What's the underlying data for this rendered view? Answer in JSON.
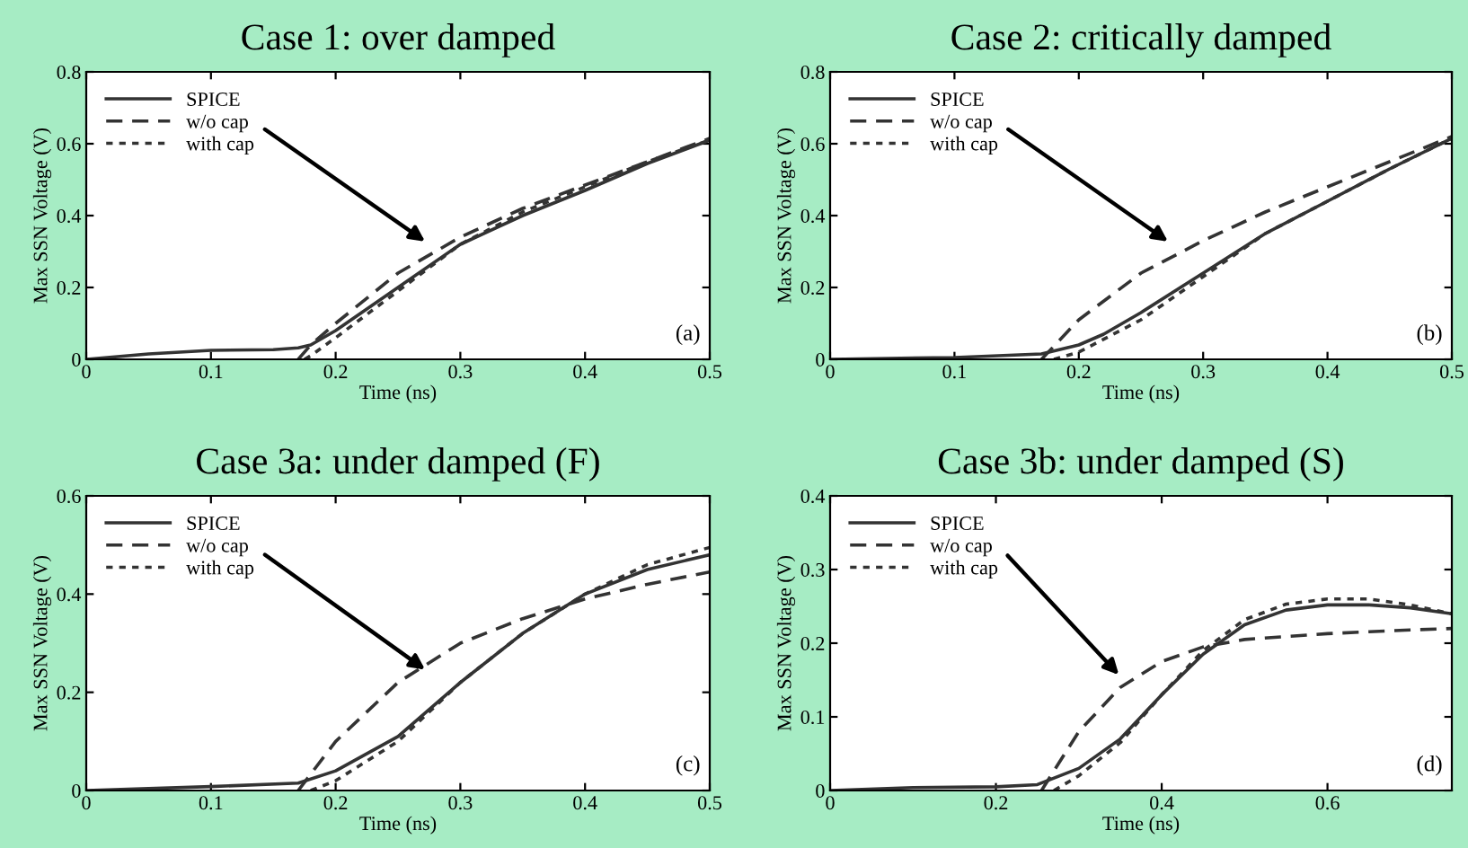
{
  "chart_data": [
    {
      "type": "line",
      "title": "Case 1: over damped",
      "xlabel": "Time (ns)",
      "ylabel": "Max SSN Voltage (V)",
      "annotations": [
        "(a)"
      ],
      "xlim": [
        0,
        0.5
      ],
      "ylim": [
        0,
        0.8
      ],
      "xticks": [
        0,
        0.1,
        0.2,
        0.3,
        0.4,
        0.5
      ],
      "yticks": [
        0,
        0.2,
        0.4,
        0.6,
        0.8
      ],
      "legend": "top left",
      "grid": false,
      "series": [
        {
          "name": "SPICE",
          "color": "#333333",
          "line_style": "solid",
          "x": [
            0,
            0.05,
            0.1,
            0.15,
            0.17,
            0.18,
            0.2,
            0.25,
            0.3,
            0.35,
            0.4,
            0.45,
            0.5
          ],
          "values": [
            0,
            0.015,
            0.025,
            0.027,
            0.032,
            0.04,
            0.08,
            0.2,
            0.32,
            0.4,
            0.47,
            0.545,
            0.61
          ]
        },
        {
          "name": "w/o cap",
          "color": "#333333",
          "line_style": "dashed",
          "x": [
            0.17,
            0.18,
            0.2,
            0.25,
            0.3,
            0.35,
            0.4,
            0.45,
            0.5
          ],
          "values": [
            0,
            0.04,
            0.1,
            0.24,
            0.34,
            0.42,
            0.485,
            0.55,
            0.615
          ]
        },
        {
          "name": "with cap",
          "color": "#333333",
          "line_style": "dotted",
          "x": [
            0.175,
            0.18,
            0.2,
            0.25,
            0.3,
            0.35,
            0.4,
            0.45,
            0.5
          ],
          "values": [
            0,
            0.01,
            0.06,
            0.19,
            0.32,
            0.41,
            0.48,
            0.55,
            0.61
          ]
        }
      ]
    },
    {
      "type": "line",
      "title": "Case 2: critically damped",
      "xlabel": "Time (ns)",
      "ylabel": "Max SSN Voltage (V)",
      "annotations": [
        "(b)"
      ],
      "xlim": [
        0,
        0.5
      ],
      "ylim": [
        0,
        0.8
      ],
      "xticks": [
        0,
        0.1,
        0.2,
        0.3,
        0.4,
        0.5
      ],
      "yticks": [
        0,
        0.2,
        0.4,
        0.6,
        0.8
      ],
      "legend": "top left",
      "grid": false,
      "series": [
        {
          "name": "SPICE",
          "color": "#333333",
          "line_style": "solid",
          "x": [
            0,
            0.1,
            0.17,
            0.2,
            0.22,
            0.25,
            0.3,
            0.35,
            0.4,
            0.45,
            0.5
          ],
          "values": [
            0,
            0.005,
            0.015,
            0.04,
            0.07,
            0.13,
            0.24,
            0.35,
            0.44,
            0.53,
            0.615
          ]
        },
        {
          "name": "w/o cap",
          "color": "#333333",
          "line_style": "dashed",
          "x": [
            0.17,
            0.2,
            0.25,
            0.3,
            0.35,
            0.4,
            0.45,
            0.5
          ],
          "values": [
            0,
            0.11,
            0.24,
            0.33,
            0.41,
            0.48,
            0.55,
            0.62
          ]
        },
        {
          "name": "with cap",
          "color": "#333333",
          "line_style": "dotted",
          "x": [
            0.18,
            0.2,
            0.25,
            0.3,
            0.35,
            0.4,
            0.45,
            0.5
          ],
          "values": [
            0,
            0.02,
            0.11,
            0.23,
            0.35,
            0.44,
            0.53,
            0.615
          ]
        }
      ]
    },
    {
      "type": "line",
      "title": "Case 3a: under damped (F)",
      "xlabel": "Time (ns)",
      "ylabel": "Max SSN Voltage (V)",
      "annotations": [
        "(c)"
      ],
      "xlim": [
        0,
        0.5
      ],
      "ylim": [
        0,
        0.6
      ],
      "xticks": [
        0,
        0.1,
        0.2,
        0.3,
        0.4,
        0.5
      ],
      "yticks": [
        0,
        0.2,
        0.4,
        0.6
      ],
      "legend": "top left",
      "grid": false,
      "series": [
        {
          "name": "SPICE",
          "color": "#333333",
          "line_style": "solid",
          "x": [
            0,
            0.1,
            0.17,
            0.2,
            0.25,
            0.3,
            0.35,
            0.4,
            0.45,
            0.5
          ],
          "values": [
            0,
            0.008,
            0.015,
            0.04,
            0.11,
            0.22,
            0.32,
            0.4,
            0.45,
            0.48
          ]
        },
        {
          "name": "w/o cap",
          "color": "#333333",
          "line_style": "dashed",
          "x": [
            0.17,
            0.2,
            0.25,
            0.3,
            0.35,
            0.4,
            0.45,
            0.5
          ],
          "values": [
            0,
            0.1,
            0.22,
            0.3,
            0.35,
            0.39,
            0.42,
            0.445
          ]
        },
        {
          "name": "with cap",
          "color": "#333333",
          "line_style": "dotted",
          "x": [
            0.18,
            0.2,
            0.25,
            0.3,
            0.35,
            0.4,
            0.45,
            0.5
          ],
          "values": [
            0,
            0.02,
            0.1,
            0.22,
            0.32,
            0.4,
            0.46,
            0.495
          ]
        }
      ]
    },
    {
      "type": "line",
      "title": "Case 3b: under damped (S)",
      "xlabel": "Time (ns)",
      "ylabel": "Max SSN Voltage (V)",
      "annotations": [
        "(d)"
      ],
      "xlim": [
        0,
        0.75
      ],
      "ylim": [
        0,
        0.4
      ],
      "xticks": [
        0,
        0.2,
        0.4,
        0.6
      ],
      "yticks": [
        0,
        0.1,
        0.2,
        0.3,
        0.4
      ],
      "legend": "top left",
      "grid": false,
      "series": [
        {
          "name": "SPICE",
          "color": "#333333",
          "line_style": "solid",
          "x": [
            0,
            0.1,
            0.2,
            0.25,
            0.3,
            0.35,
            0.4,
            0.45,
            0.5,
            0.55,
            0.6,
            0.65,
            0.7,
            0.75
          ],
          "values": [
            0,
            0.004,
            0.005,
            0.008,
            0.03,
            0.07,
            0.13,
            0.185,
            0.225,
            0.245,
            0.252,
            0.252,
            0.248,
            0.24
          ]
        },
        {
          "name": "w/o cap",
          "color": "#333333",
          "line_style": "dashed",
          "x": [
            0.255,
            0.3,
            0.35,
            0.4,
            0.45,
            0.5,
            0.6,
            0.7,
            0.75
          ],
          "values": [
            0,
            0.08,
            0.14,
            0.175,
            0.195,
            0.205,
            0.213,
            0.218,
            0.22
          ]
        },
        {
          "name": "with cap",
          "color": "#333333",
          "line_style": "dotted",
          "x": [
            0.27,
            0.3,
            0.35,
            0.4,
            0.45,
            0.5,
            0.55,
            0.6,
            0.65,
            0.7,
            0.75
          ],
          "values": [
            0,
            0.02,
            0.065,
            0.13,
            0.19,
            0.232,
            0.253,
            0.26,
            0.26,
            0.252,
            0.24
          ]
        }
      ]
    }
  ]
}
